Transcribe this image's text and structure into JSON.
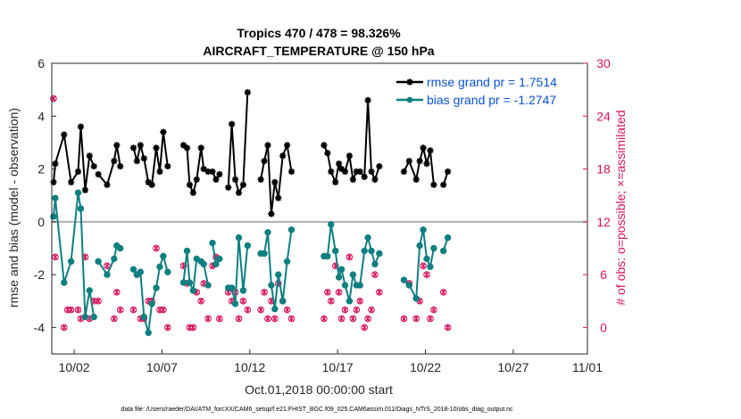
{
  "chart_data": {
    "type": "line",
    "title": "Tropics 470 / 478 = 98.326%",
    "subtitle": "AIRCRAFT_TEMPERATURE @ 150 hPa",
    "xlabel": "Oct.01,2018 00:00:00 start",
    "ylabel": "rmse and bias (model - observation)",
    "ylabel_right": "# of obs: o=possible; ×=assimilated",
    "footer": "data file: /Users/raeder/DAI/ATM_forcXX/CAM6_setup/f.e21.FHIST_BGC.f09_025.CAM6assim.011/Diags_NTrS_2018-10/obs_diag_output.nc",
    "xlim": [
      0.6,
      31.1
    ],
    "ylim": [
      -5,
      6
    ],
    "ylim_right": [
      -3,
      30
    ],
    "x_ticks": [
      1.875,
      6.875,
      11.875,
      16.875,
      21.875,
      26.875,
      31.875
    ],
    "x_tick_labels": [
      "10/02",
      "10/07",
      "10/12",
      "10/17",
      "10/22",
      "10/27",
      "11/01"
    ],
    "y_ticks": [
      -4,
      -2,
      0,
      2,
      4,
      6
    ],
    "y_tick_labels": [
      "-4",
      "-2",
      "0",
      "2",
      "4",
      "6"
    ],
    "y_right_ticks": [
      0,
      6,
      12,
      18,
      24,
      30
    ],
    "y_right_tick_labels": [
      "0",
      "6",
      "12",
      "18",
      "24",
      "30"
    ],
    "zero_line": 0,
    "series": [
      {
        "name": "rmse grand pr = 1.7514",
        "color": "#000000",
        "marker": "asterisk",
        "segments": [
          [
            [
              0.7,
              1.5
            ],
            [
              0.8,
              2.2
            ],
            [
              1.3,
              3.3
            ],
            [
              1.7,
              1.5
            ],
            [
              2.1,
              1.9
            ],
            [
              2.25,
              3.6
            ],
            [
              2.5,
              1.2
            ],
            [
              2.75,
              2.5
            ],
            [
              3.0,
              2.1
            ]
          ],
          [
            [
              3.25,
              1.8
            ],
            [
              3.75,
              1.4
            ],
            [
              4.15,
              2.3
            ],
            [
              4.3,
              2.9
            ],
            [
              4.5,
              2.1
            ]
          ],
          [
            [
              5.25,
              2.8
            ],
            [
              5.45,
              2.3
            ],
            [
              5.65,
              2.9
            ],
            [
              5.85,
              2.4
            ],
            [
              6.1,
              1.5
            ],
            [
              6.3,
              1.4
            ],
            [
              6.55,
              2.8
            ],
            [
              6.75,
              1.9
            ],
            [
              6.95,
              3.4
            ],
            [
              7.2,
              2.1
            ]
          ],
          [
            [
              8.1,
              2.9
            ],
            [
              8.3,
              2.8
            ],
            [
              8.45,
              1.4
            ],
            [
              8.65,
              1.1
            ],
            [
              8.85,
              1.6
            ],
            [
              9.1,
              2.8
            ],
            [
              9.25,
              2.0
            ],
            [
              9.5,
              1.9
            ]
          ],
          [
            [
              9.75,
              1.9
            ],
            [
              9.95,
              1.6
            ],
            [
              10.15,
              1.8
            ]
          ],
          [
            [
              10.65,
              1.3
            ],
            [
              10.85,
              3.7
            ],
            [
              11.05,
              1.6
            ],
            [
              11.25,
              1.1
            ],
            [
              11.5,
              1.4
            ],
            [
              11.75,
              4.9
            ]
          ],
          [
            [
              12.5,
              1.6
            ],
            [
              12.7,
              2.3
            ],
            [
              12.9,
              2.9
            ],
            [
              13.1,
              0.3
            ],
            [
              13.3,
              1.5
            ],
            [
              13.5,
              0.9
            ],
            [
              13.75,
              2.5
            ],
            [
              14.0,
              2.9
            ],
            [
              14.25,
              1.9
            ]
          ],
          [
            [
              16.1,
              2.9
            ],
            [
              16.3,
              2.6
            ],
            [
              16.5,
              1.9
            ],
            [
              16.75,
              1.5
            ],
            [
              16.95,
              2.2
            ],
            [
              17.1,
              2.0
            ],
            [
              17.3,
              1.9
            ],
            [
              17.55,
              2.5
            ],
            [
              17.75,
              1.6
            ],
            [
              17.95,
              1.9
            ]
          ],
          [
            [
              18.15,
              1.9
            ],
            [
              18.4,
              1.7
            ],
            [
              18.6,
              4.6
            ],
            [
              18.8,
              1.9
            ],
            [
              19.0,
              1.6
            ],
            [
              19.25,
              2.1
            ]
          ],
          [
            [
              20.65,
              1.9
            ],
            [
              20.95,
              2.3
            ],
            [
              21.35,
              1.6
            ],
            [
              21.55,
              2.3
            ],
            [
              21.75,
              2.8
            ],
            [
              21.95,
              2.2
            ],
            [
              22.15,
              2.7
            ],
            [
              22.35,
              1.4
            ]
          ],
          [
            [
              22.9,
              1.4
            ],
            [
              23.15,
              1.9
            ]
          ]
        ]
      },
      {
        "name": "bias grand pr = -1.2747",
        "color": "#0f7f7f",
        "marker": "circle",
        "segments": [
          [
            [
              0.7,
              0.2
            ],
            [
              0.8,
              0.9
            ],
            [
              1.3,
              -2.3
            ],
            [
              1.7,
              -1.5
            ],
            [
              2.1,
              1.1
            ],
            [
              2.25,
              0.5
            ],
            [
              2.5,
              -3.6
            ],
            [
              2.75,
              -2.6
            ],
            [
              3.0,
              -3.6
            ]
          ],
          [
            [
              3.25,
              -1.5
            ],
            [
              3.75,
              -2.0
            ],
            [
              4.15,
              -1.4
            ],
            [
              4.3,
              -0.9
            ],
            [
              4.5,
              -1.0
            ]
          ],
          [
            [
              5.25,
              -1.8
            ],
            [
              5.45,
              -2.0
            ],
            [
              5.65,
              -1.9
            ],
            [
              5.85,
              -3.6
            ],
            [
              6.1,
              -4.2
            ],
            [
              6.3,
              -3.1
            ],
            [
              6.55,
              -2.5
            ],
            [
              6.75,
              -1.7
            ],
            [
              6.95,
              -1.3
            ],
            [
              7.2,
              -1.9
            ]
          ],
          [
            [
              8.1,
              -2.3
            ],
            [
              8.3,
              -1.1
            ],
            [
              8.45,
              -2.3
            ],
            [
              8.65,
              -2.6
            ],
            [
              8.85,
              -1.4
            ],
            [
              9.1,
              -1.5
            ],
            [
              9.25,
              -1.6
            ],
            [
              9.5,
              -2.4
            ]
          ],
          [
            [
              9.75,
              -0.8
            ],
            [
              9.95,
              -1.6
            ],
            [
              10.15,
              -1.4
            ]
          ],
          [
            [
              10.65,
              -2.5
            ],
            [
              10.85,
              -2.5
            ],
            [
              11.05,
              -3.1
            ],
            [
              11.25,
              -0.6
            ],
            [
              11.5,
              -2.6
            ],
            [
              11.75,
              -0.9
            ]
          ],
          [
            [
              12.5,
              -1.2
            ],
            [
              12.7,
              -1.2
            ],
            [
              12.9,
              -0.4
            ],
            [
              13.1,
              -2.4
            ],
            [
              13.3,
              -3.3
            ],
            [
              13.5,
              -2.0
            ],
            [
              13.75,
              -3.0
            ],
            [
              14.0,
              -1.5
            ],
            [
              14.25,
              -0.3
            ]
          ],
          [
            [
              16.1,
              -1.3
            ],
            [
              16.3,
              -1.3
            ],
            [
              16.5,
              -0.1
            ],
            [
              16.75,
              -1.1
            ],
            [
              16.95,
              -2.1
            ],
            [
              17.1,
              -1.8
            ],
            [
              17.3,
              -2.4
            ],
            [
              17.55,
              -3.0
            ],
            [
              17.75,
              -2.0
            ],
            [
              17.95,
              -2.4
            ]
          ],
          [
            [
              18.15,
              -2.4
            ],
            [
              18.4,
              -1.1
            ],
            [
              18.6,
              -0.6
            ],
            [
              18.8,
              -1.1
            ],
            [
              19.0,
              -1.6
            ],
            [
              19.25,
              -1.2
            ]
          ],
          [
            [
              20.65,
              -2.2
            ],
            [
              20.95,
              -2.4
            ],
            [
              21.35,
              -2.9
            ],
            [
              21.55,
              -0.9
            ],
            [
              21.75,
              -0.3
            ],
            [
              21.95,
              -1.4
            ],
            [
              22.15,
              -1.7
            ],
            [
              22.35,
              -1.0
            ]
          ],
          [
            [
              22.9,
              -1.1
            ],
            [
              23.15,
              -0.6
            ]
          ]
        ]
      }
    ],
    "obs_possible": [
      [
        0.7,
        26
      ],
      [
        0.8,
        8
      ],
      [
        1.3,
        0
      ],
      [
        1.5,
        2
      ],
      [
        1.7,
        2
      ],
      [
        2.1,
        2
      ],
      [
        2.25,
        1
      ],
      [
        2.5,
        8
      ],
      [
        2.75,
        1
      ],
      [
        3.0,
        3
      ],
      [
        3.25,
        3
      ],
      [
        3.75,
        7
      ],
      [
        4.15,
        1
      ],
      [
        4.3,
        4
      ],
      [
        4.5,
        2
      ],
      [
        5.25,
        2
      ],
      [
        5.45,
        6
      ],
      [
        5.65,
        1
      ],
      [
        5.85,
        1
      ],
      [
        6.1,
        3
      ],
      [
        6.3,
        3
      ],
      [
        6.55,
        9
      ],
      [
        6.75,
        2
      ],
      [
        6.95,
        2
      ],
      [
        7.2,
        0
      ],
      [
        8.1,
        7
      ],
      [
        8.3,
        5
      ],
      [
        8.45,
        0
      ],
      [
        8.65,
        0
      ],
      [
        8.85,
        4
      ],
      [
        9.1,
        3
      ],
      [
        9.25,
        5
      ],
      [
        9.5,
        1
      ],
      [
        9.75,
        7
      ],
      [
        9.95,
        8
      ],
      [
        10.15,
        1
      ],
      [
        10.65,
        4
      ],
      [
        10.85,
        3
      ],
      [
        11.05,
        4
      ],
      [
        11.25,
        1
      ],
      [
        11.5,
        3
      ],
      [
        11.75,
        2
      ],
      [
        12.5,
        2
      ],
      [
        12.7,
        4
      ],
      [
        12.9,
        1
      ],
      [
        13.1,
        3
      ],
      [
        13.3,
        1
      ],
      [
        13.5,
        5
      ],
      [
        13.75,
        3
      ],
      [
        14.0,
        2
      ],
      [
        14.25,
        1
      ],
      [
        16.1,
        1
      ],
      [
        16.3,
        4
      ],
      [
        16.5,
        3
      ],
      [
        16.75,
        7
      ],
      [
        16.95,
        4
      ],
      [
        17.1,
        1
      ],
      [
        17.3,
        2
      ],
      [
        17.55,
        8
      ],
      [
        17.75,
        1
      ],
      [
        17.95,
        2
      ],
      [
        18.15,
        3
      ],
      [
        18.4,
        0
      ],
      [
        18.6,
        1
      ],
      [
        18.8,
        2
      ],
      [
        19.0,
        6
      ],
      [
        19.25,
        4
      ],
      [
        20.65,
        1
      ],
      [
        20.95,
        5
      ],
      [
        21.35,
        1
      ],
      [
        21.55,
        3
      ],
      [
        21.75,
        7
      ],
      [
        21.95,
        6
      ],
      [
        22.15,
        1
      ],
      [
        22.35,
        2
      ],
      [
        22.9,
        4
      ],
      [
        23.15,
        0
      ]
    ],
    "obs_assimilated": [
      [
        0.7,
        26
      ],
      [
        0.8,
        8
      ],
      [
        1.3,
        0
      ],
      [
        1.5,
        2
      ],
      [
        1.7,
        2
      ],
      [
        2.1,
        2
      ],
      [
        2.25,
        1
      ],
      [
        2.5,
        8
      ],
      [
        2.75,
        1
      ],
      [
        3.0,
        3
      ],
      [
        3.25,
        3
      ],
      [
        3.75,
        7
      ],
      [
        4.15,
        1
      ],
      [
        4.3,
        4
      ],
      [
        4.5,
        2
      ],
      [
        5.25,
        2
      ],
      [
        5.45,
        6
      ],
      [
        5.65,
        1
      ],
      [
        5.85,
        1
      ],
      [
        6.1,
        3
      ],
      [
        6.3,
        3
      ],
      [
        6.55,
        9
      ],
      [
        6.75,
        2
      ],
      [
        6.95,
        2
      ],
      [
        7.2,
        0
      ],
      [
        8.1,
        7
      ],
      [
        8.3,
        5
      ],
      [
        8.45,
        0
      ],
      [
        8.65,
        0
      ],
      [
        8.85,
        4
      ],
      [
        9.1,
        3
      ],
      [
        9.25,
        5
      ],
      [
        9.5,
        1
      ],
      [
        9.75,
        7
      ],
      [
        9.95,
        8
      ],
      [
        10.15,
        1
      ],
      [
        10.65,
        4
      ],
      [
        10.85,
        3
      ],
      [
        11.05,
        4
      ],
      [
        11.25,
        1
      ],
      [
        11.5,
        3
      ],
      [
        11.75,
        2
      ],
      [
        12.5,
        2
      ],
      [
        12.7,
        4
      ],
      [
        12.9,
        1
      ],
      [
        13.1,
        3
      ],
      [
        13.3,
        1
      ],
      [
        13.5,
        5
      ],
      [
        13.75,
        3
      ],
      [
        14.0,
        2
      ],
      [
        14.25,
        1
      ],
      [
        16.1,
        1
      ],
      [
        16.3,
        4
      ],
      [
        16.5,
        3
      ],
      [
        16.75,
        7
      ],
      [
        16.95,
        4
      ],
      [
        17.1,
        1
      ],
      [
        17.3,
        2
      ],
      [
        17.55,
        8
      ],
      [
        17.75,
        1
      ],
      [
        17.95,
        2
      ],
      [
        18.15,
        3
      ],
      [
        18.4,
        0
      ],
      [
        18.6,
        1
      ],
      [
        18.8,
        2
      ],
      [
        19.0,
        6
      ],
      [
        19.25,
        4
      ],
      [
        20.65,
        1
      ],
      [
        20.95,
        5
      ],
      [
        21.35,
        1
      ],
      [
        21.55,
        3
      ],
      [
        21.75,
        7
      ],
      [
        21.95,
        6
      ],
      [
        22.15,
        1
      ],
      [
        22.35,
        2
      ],
      [
        22.9,
        4
      ],
      [
        23.15,
        0
      ]
    ],
    "legend_position": "top-right"
  }
}
